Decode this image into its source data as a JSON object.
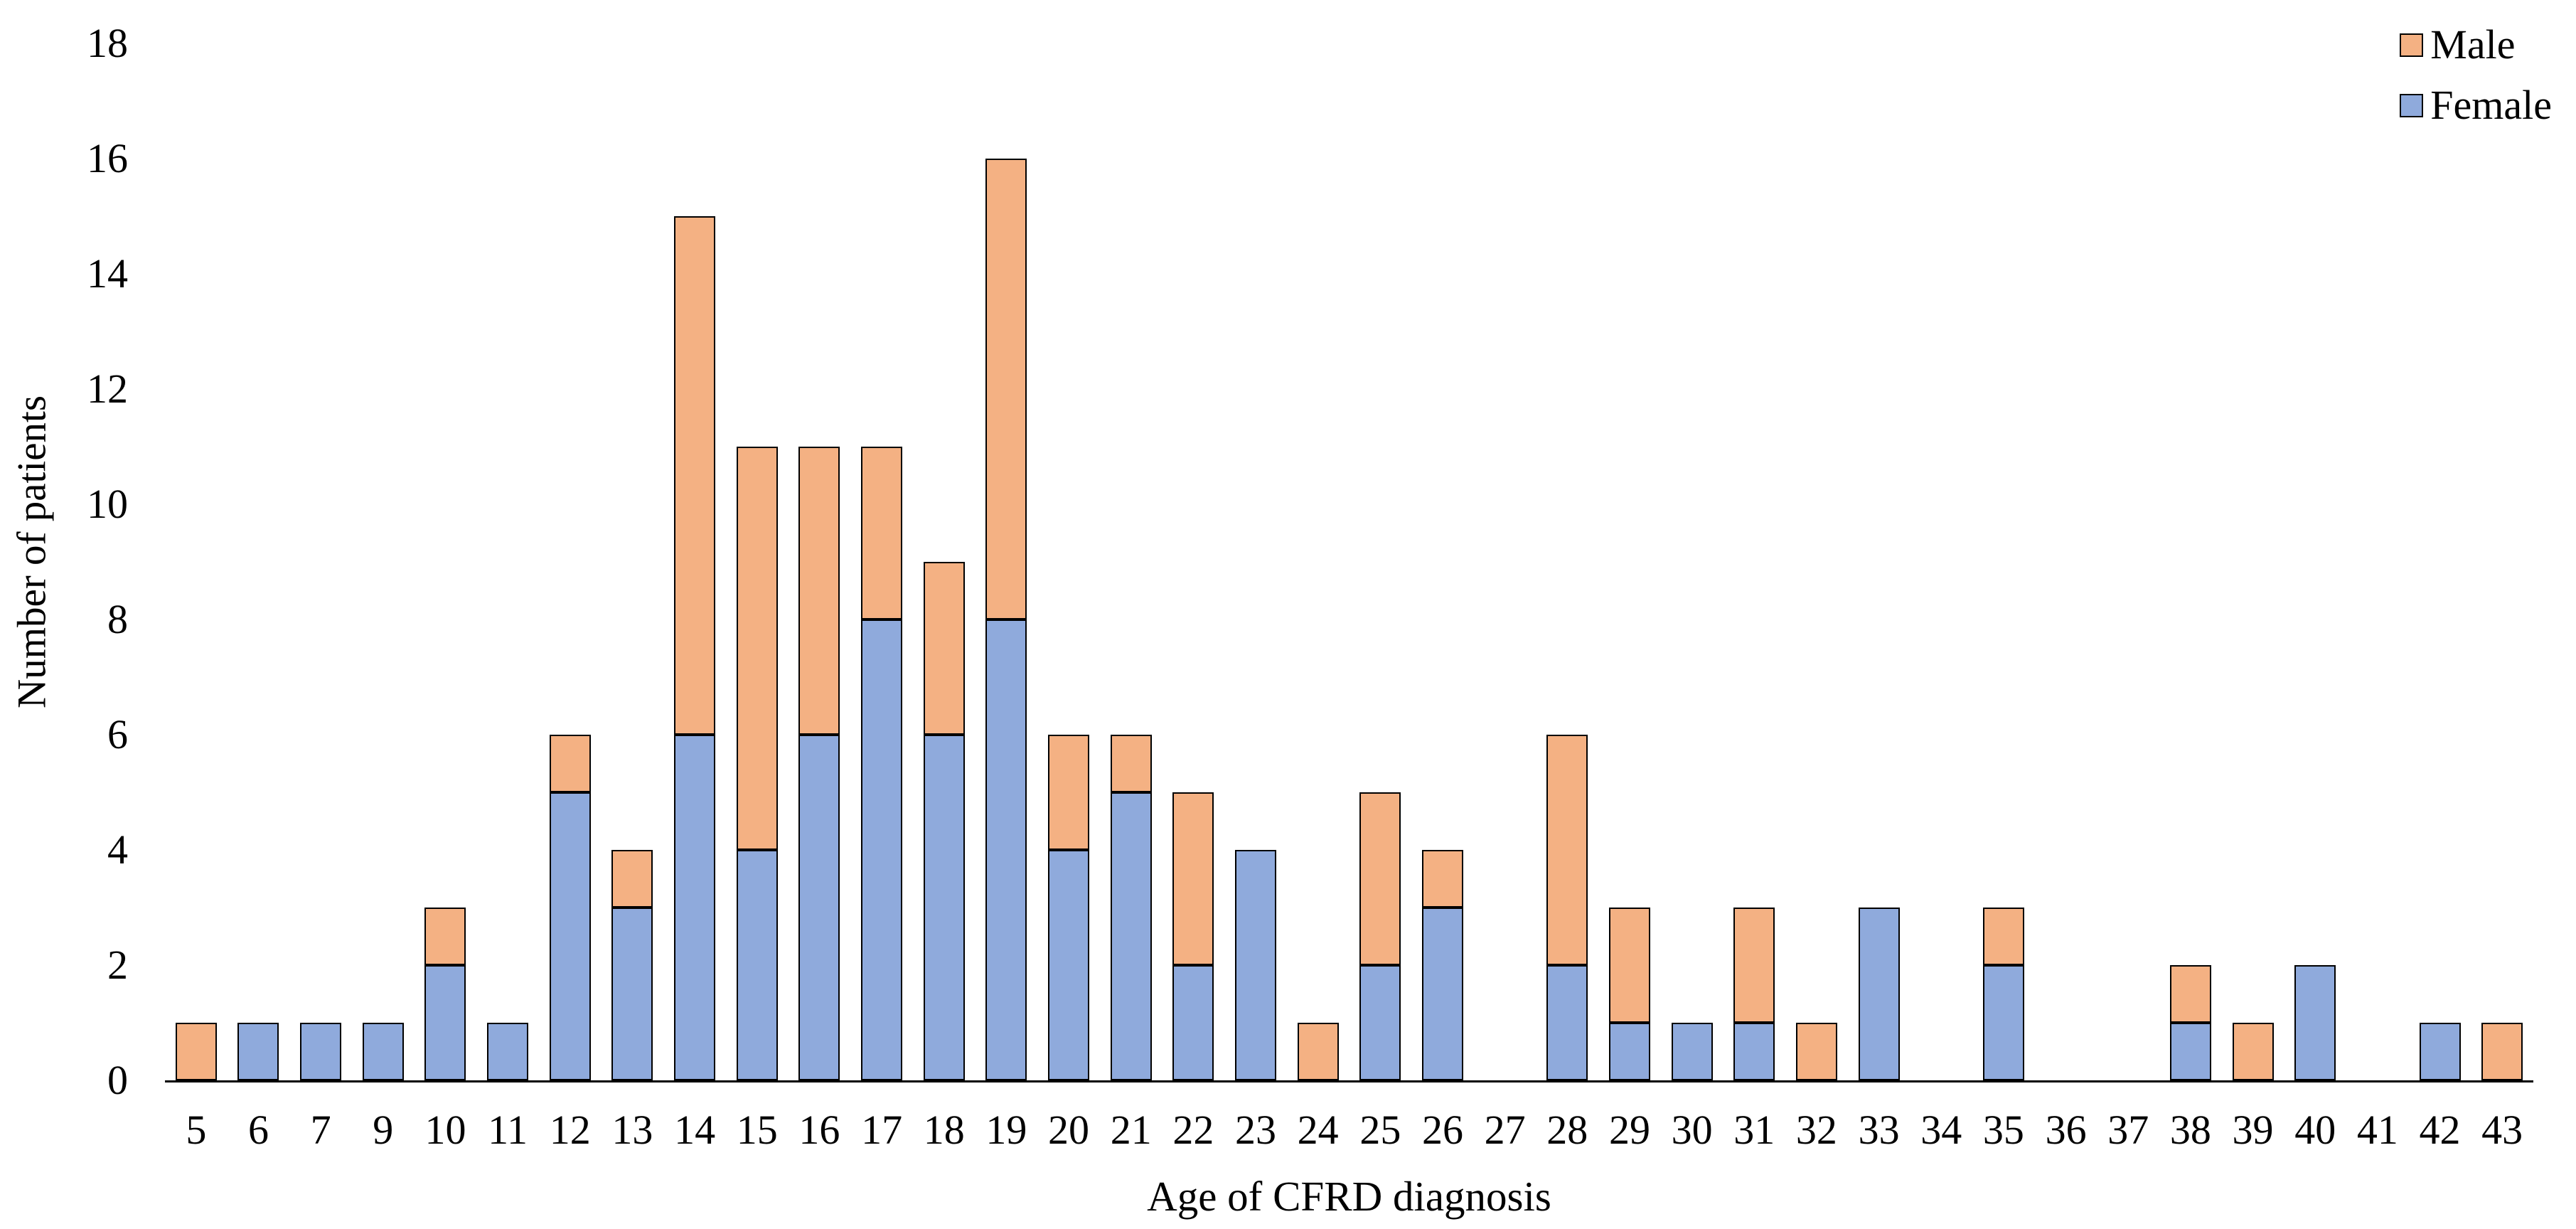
{
  "chart_data": {
    "type": "bar",
    "stacked": true,
    "title": "",
    "xlabel": "Age of CFRD diagnosis",
    "ylabel": "Number of patients",
    "categories": [
      "5",
      "6",
      "7",
      "9",
      "10",
      "11",
      "12",
      "13",
      "14",
      "15",
      "16",
      "17",
      "18",
      "19",
      "20",
      "21",
      "22",
      "23",
      "24",
      "25",
      "26",
      "27",
      "28",
      "29",
      "30",
      "31",
      "32",
      "33",
      "34",
      "35",
      "36",
      "37",
      "38",
      "39",
      "40",
      "41",
      "42",
      "43"
    ],
    "series": [
      {
        "name": "Male",
        "color": "#F4B183",
        "values": [
          1,
          0,
          0,
          0,
          1,
          0,
          1,
          1,
          9,
          7,
          5,
          3,
          3,
          8,
          2,
          1,
          3,
          0,
          1,
          3,
          1,
          0,
          4,
          2,
          0,
          2,
          1,
          0,
          0,
          1,
          0,
          0,
          1,
          1,
          0,
          0,
          0,
          1
        ]
      },
      {
        "name": "Female",
        "color": "#8FAADC",
        "values": [
          0,
          1,
          1,
          1,
          2,
          1,
          5,
          3,
          6,
          4,
          6,
          8,
          6,
          8,
          4,
          5,
          2,
          4,
          0,
          2,
          3,
          0,
          2,
          1,
          1,
          1,
          0,
          3,
          0,
          2,
          0,
          0,
          1,
          0,
          2,
          0,
          1,
          0
        ]
      }
    ],
    "stack_order_bottom_to_top": [
      "Female",
      "Male"
    ],
    "ylim": [
      0,
      18
    ],
    "yticks": [
      0,
      2,
      4,
      6,
      8,
      10,
      12,
      14,
      16,
      18
    ],
    "grid": false,
    "legend_position": "top-right"
  }
}
